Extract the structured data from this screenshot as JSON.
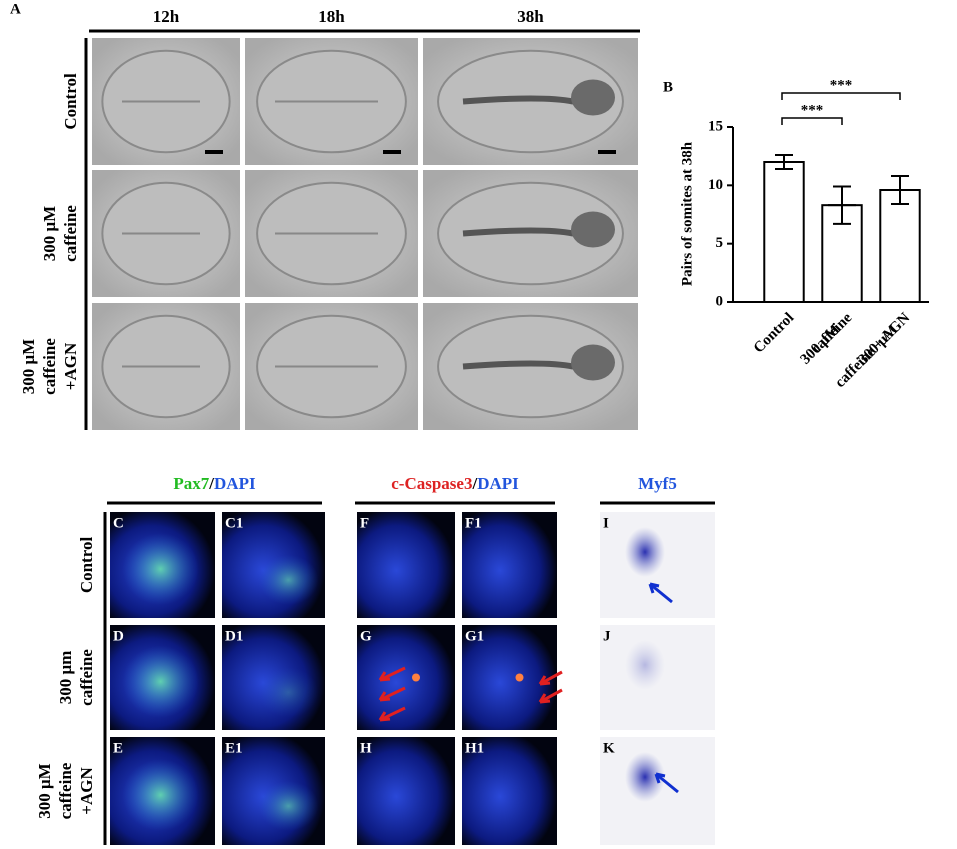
{
  "panel_a": {
    "label": "A",
    "columns": [
      "12h",
      "18h",
      "38h"
    ],
    "rows": [
      [
        "Control"
      ],
      [
        "300 μM",
        "caffeine"
      ],
      [
        "300 μM",
        "caffeine",
        "+AGN"
      ]
    ]
  },
  "chart_data": {
    "type": "bar",
    "label": "B",
    "ylabel": "Pairs of somites at 38h",
    "categories": [
      [
        "Control"
      ],
      [
        "300 μM",
        "caffeine"
      ],
      [
        "300 μM",
        "caffeine + AGN"
      ]
    ],
    "values": [
      12,
      8.3,
      9.6
    ],
    "errors": [
      0.6,
      1.6,
      1.2
    ],
    "color": "#ffffff",
    "ylim": [
      0,
      15
    ],
    "yticks": [
      0,
      5,
      10,
      15
    ],
    "significance": [
      {
        "from": 0,
        "to": 1,
        "label": "***"
      },
      {
        "from": 0,
        "to": 2,
        "label": "***"
      }
    ]
  },
  "panel_c": {
    "headers": [
      [
        {
          "text": "Pax7",
          "color": "#22bb22"
        },
        {
          "text": "/",
          "color": "#000000"
        },
        {
          "text": "DAPI",
          "color": "#2255dd"
        }
      ],
      [
        {
          "text": "c-Caspase3",
          "color": "#dd2222"
        },
        {
          "text": "/",
          "color": "#000000"
        },
        {
          "text": "DAPI",
          "color": "#2255dd"
        }
      ],
      [
        {
          "text": "Myf5",
          "color": "#2255dd"
        }
      ]
    ],
    "rows": [
      [
        "Control"
      ],
      [
        "300 μm",
        "caffeine"
      ],
      [
        "300 μM",
        "caffeine",
        "+AGN"
      ]
    ],
    "panel_labels": [
      [
        "C",
        "C1",
        "F",
        "F1",
        "I"
      ],
      [
        "D",
        "D1",
        "G",
        "G1",
        "J"
      ],
      [
        "E",
        "E1",
        "H",
        "H1",
        "K"
      ]
    ]
  }
}
